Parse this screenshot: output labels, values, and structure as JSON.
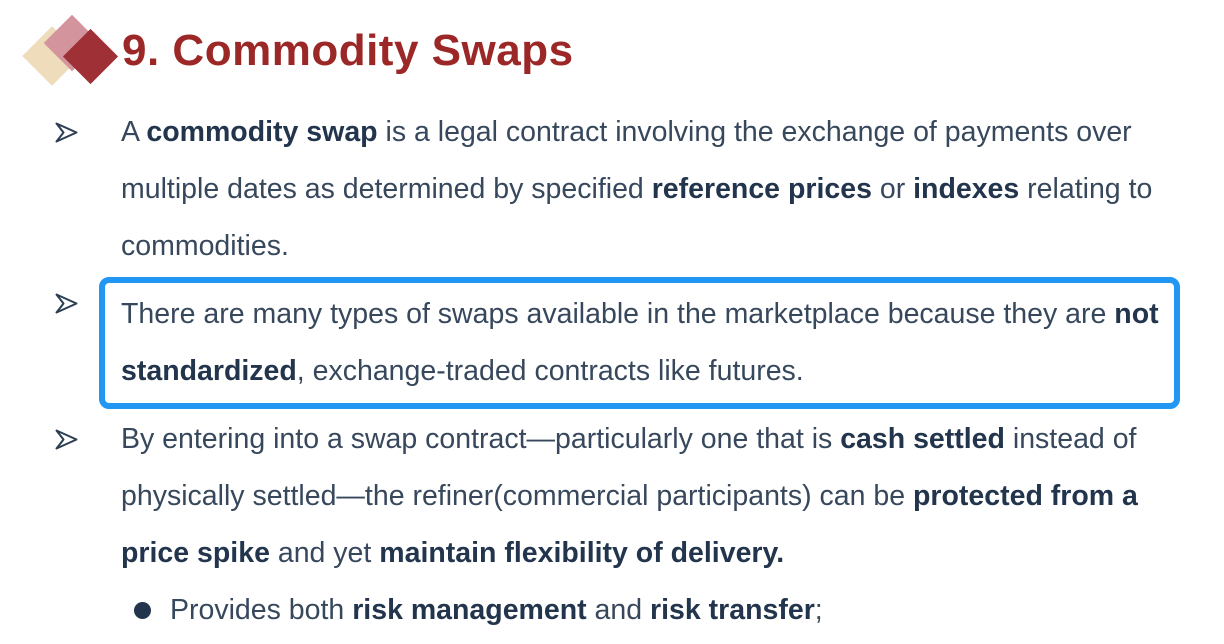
{
  "slide": {
    "title": "9. Commodity Swaps"
  },
  "colors": {
    "title": "#9c2727",
    "text": "#37485d",
    "bold_text": "#22354d",
    "highlight_border": "#2196f3",
    "diamond_back": "#eedcbb",
    "diamond_mid": "#d3949e",
    "diamond_front": "#9e3036"
  },
  "icons": {
    "bullet_arrow": "outlined-right-arrowhead",
    "sub_bullet": "filled-circle"
  },
  "bullets": [
    {
      "marker": "arrow",
      "highlighted": false,
      "segments": [
        {
          "text": " A ",
          "bold": false
        },
        {
          "text": "commodity swap",
          "bold": true
        },
        {
          "text": " is a legal contract involving the exchange of payments over multiple dates as determined by specified ",
          "bold": false
        },
        {
          "text": "reference prices",
          "bold": true
        },
        {
          "text": " or ",
          "bold": false
        },
        {
          "text": "indexes",
          "bold": true
        },
        {
          "text": " relating to commodities.",
          "bold": false
        }
      ]
    },
    {
      "marker": "arrow",
      "highlighted": true,
      "segments": [
        {
          "text": "There are many types of swaps available in the marketplace because they are ",
          "bold": false
        },
        {
          "text": "not standardized",
          "bold": true
        },
        {
          "text": ", exchange-traded contracts like futures.",
          "bold": false
        }
      ]
    },
    {
      "marker": "arrow",
      "highlighted": false,
      "segments": [
        {
          "text": " By entering into a swap contract—particularly one that is ",
          "bold": false
        },
        {
          "text": "cash settled",
          "bold": true
        },
        {
          "text": " instead of physically settled—the refiner(commercial participants) can be ",
          "bold": false
        },
        {
          "text": "protected from a price spike",
          "bold": true
        },
        {
          "text": " and yet ",
          "bold": false
        },
        {
          "text": "maintain flexibility of delivery.",
          "bold": true
        }
      ]
    },
    {
      "marker": "dot",
      "highlighted": false,
      "segments": [
        {
          "text": "Provides both ",
          "bold": false
        },
        {
          "text": "risk management",
          "bold": true
        },
        {
          "text": " and ",
          "bold": false
        },
        {
          "text": "risk transfer",
          "bold": true
        },
        {
          "text": ";",
          "bold": false
        }
      ]
    }
  ]
}
